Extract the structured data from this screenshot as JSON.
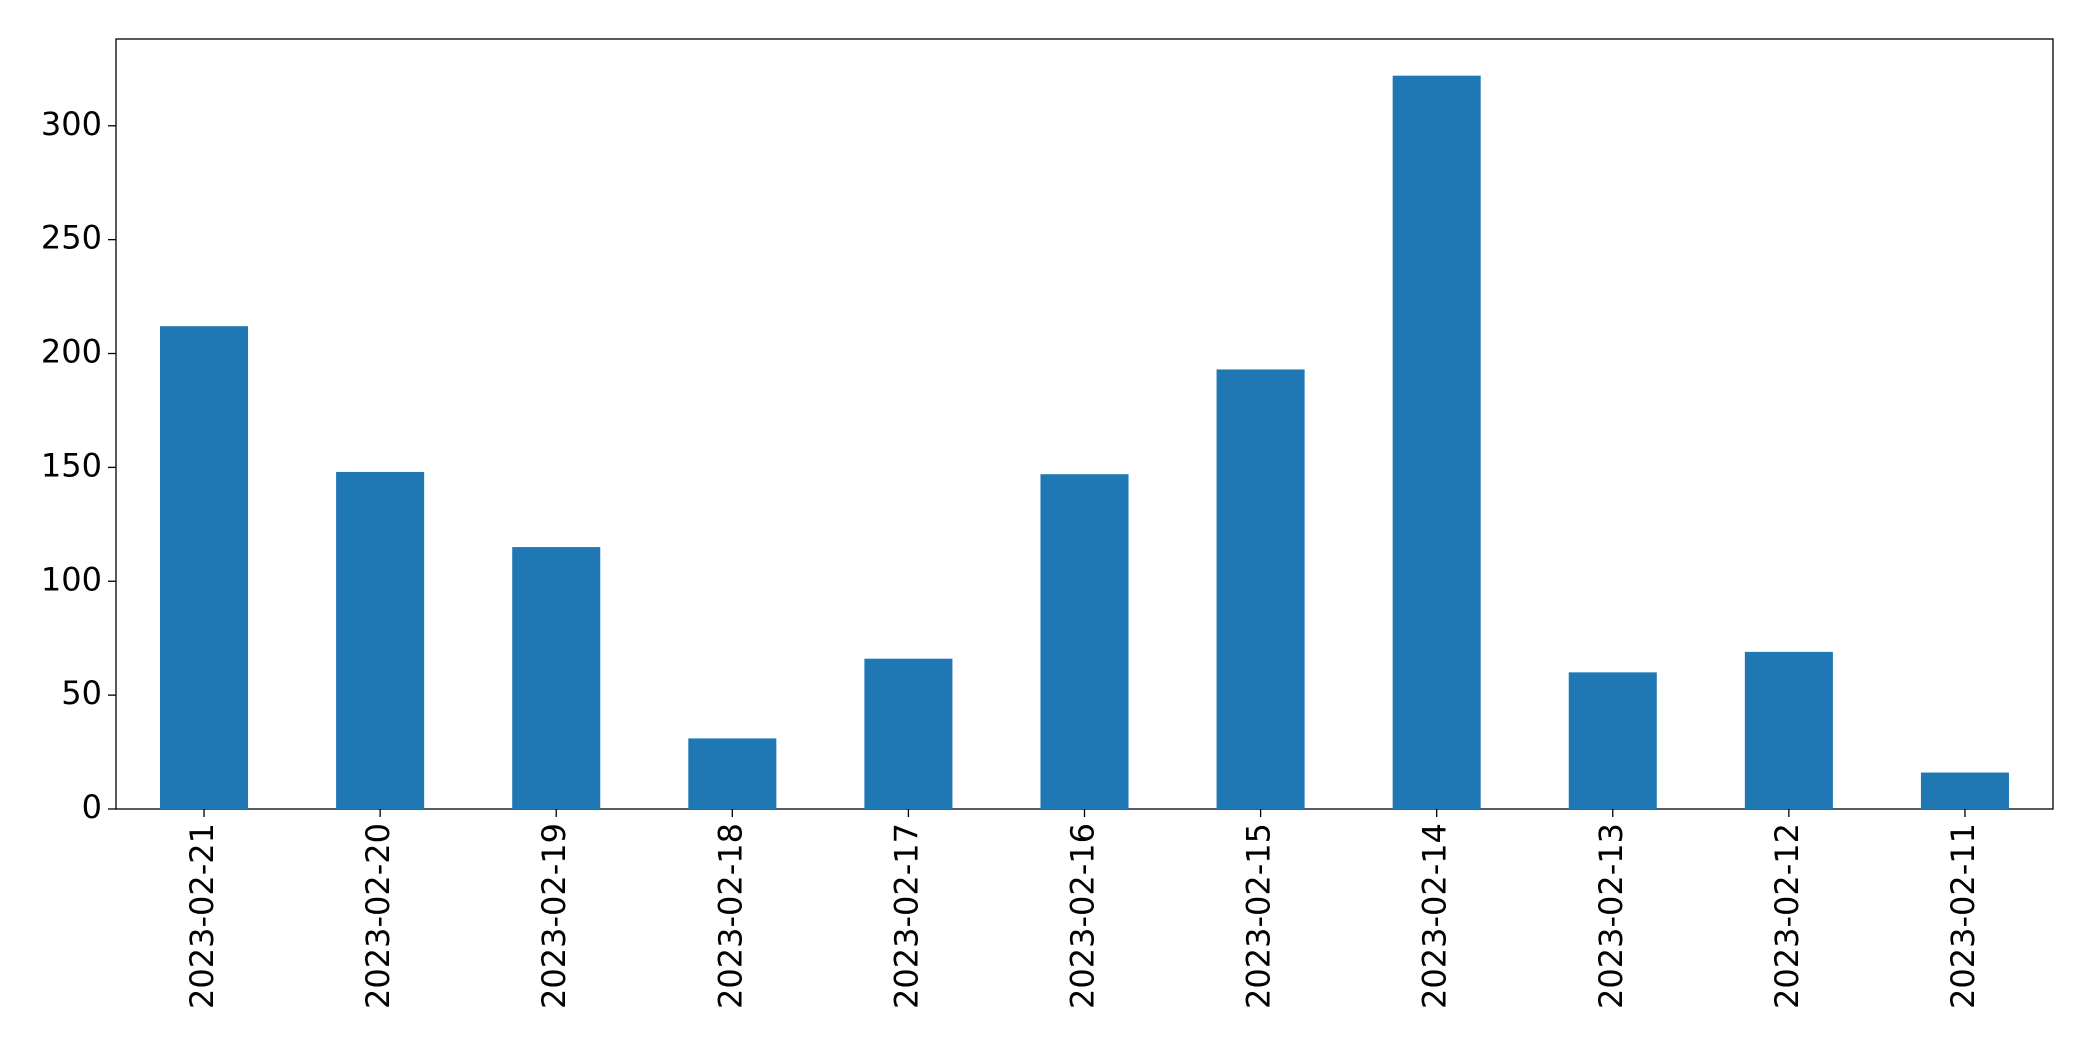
{
  "chart_data": {
    "type": "bar",
    "categories": [
      "2023-02-21",
      "2023-02-20",
      "2023-02-19",
      "2023-02-18",
      "2023-02-17",
      "2023-02-16",
      "2023-02-15",
      "2023-02-14",
      "2023-02-13",
      "2023-02-12",
      "2023-02-11"
    ],
    "values": [
      212,
      148,
      115,
      31,
      66,
      147,
      193,
      322,
      60,
      69,
      16
    ],
    "color": "#1f77b4",
    "ylim": [
      0,
      338.1
    ],
    "yticks": [
      0,
      50,
      100,
      150,
      200,
      250,
      300
    ],
    "grid": false
  }
}
